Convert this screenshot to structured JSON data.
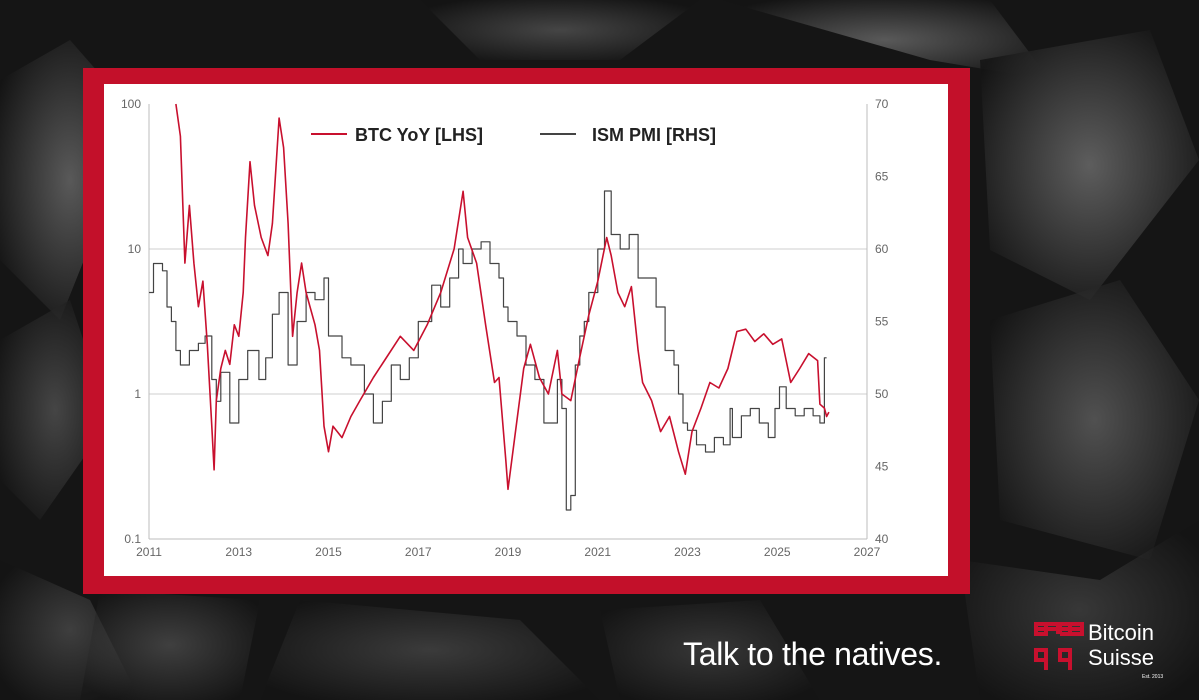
{
  "tagline": "Talk to the natives.",
  "brand": {
    "line1": "Bitcoin",
    "line2": "Suisse",
    "est": "Est. 2013"
  },
  "colors": {
    "frame": "#c3102a",
    "btc": "#c8102e",
    "ism": "#444444",
    "background": "#141414"
  },
  "chart_data": {
    "type": "line",
    "title": "",
    "legend_position": "top",
    "x_ticks": [
      "2011",
      "2013",
      "2015",
      "2017",
      "2019",
      "2021",
      "2023",
      "2025",
      "2027"
    ],
    "xlim": [
      2011,
      2027
    ],
    "y_left": {
      "scale": "log",
      "ticks": [
        "0.1",
        "1",
        "10",
        "100"
      ],
      "range": [
        0.1,
        100
      ]
    },
    "y_right": {
      "scale": "linear",
      "ticks": [
        "40",
        "45",
        "50",
        "55",
        "60",
        "65",
        "70"
      ],
      "range": [
        40,
        70
      ]
    },
    "grid": "horizontal",
    "series": [
      {
        "name": "BTC YoY [LHS]",
        "axis": "left",
        "color": "#c8102e",
        "points": [
          [
            2011.6,
            100
          ],
          [
            2011.7,
            60
          ],
          [
            2011.8,
            8
          ],
          [
            2011.9,
            20
          ],
          [
            2012.0,
            8
          ],
          [
            2012.1,
            4
          ],
          [
            2012.2,
            6
          ],
          [
            2012.3,
            2.2
          ],
          [
            2012.4,
            0.6
          ],
          [
            2012.45,
            0.3
          ],
          [
            2012.5,
            0.9
          ],
          [
            2012.6,
            1.5
          ],
          [
            2012.7,
            2.0
          ],
          [
            2012.8,
            1.6
          ],
          [
            2012.9,
            3.0
          ],
          [
            2013.0,
            2.5
          ],
          [
            2013.1,
            5
          ],
          [
            2013.15,
            12
          ],
          [
            2013.25,
            40
          ],
          [
            2013.35,
            20
          ],
          [
            2013.5,
            12
          ],
          [
            2013.65,
            9
          ],
          [
            2013.75,
            15
          ],
          [
            2013.9,
            80
          ],
          [
            2014.0,
            50
          ],
          [
            2014.1,
            15
          ],
          [
            2014.2,
            2.5
          ],
          [
            2014.3,
            5
          ],
          [
            2014.4,
            8
          ],
          [
            2014.5,
            5
          ],
          [
            2014.7,
            3
          ],
          [
            2014.8,
            2
          ],
          [
            2014.9,
            0.6
          ],
          [
            2015.0,
            0.4
          ],
          [
            2015.1,
            0.6
          ],
          [
            2015.3,
            0.5
          ],
          [
            2015.5,
            0.7
          ],
          [
            2015.7,
            0.9
          ],
          [
            2016.0,
            1.3
          ],
          [
            2016.3,
            1.8
          ],
          [
            2016.6,
            2.5
          ],
          [
            2016.9,
            2.0
          ],
          [
            2017.2,
            3.0
          ],
          [
            2017.5,
            5
          ],
          [
            2017.8,
            10
          ],
          [
            2018.0,
            25
          ],
          [
            2018.1,
            12
          ],
          [
            2018.3,
            8
          ],
          [
            2018.5,
            3
          ],
          [
            2018.7,
            1.2
          ],
          [
            2018.8,
            1.3
          ],
          [
            2018.95,
            0.35
          ],
          [
            2019.0,
            0.22
          ],
          [
            2019.15,
            0.5
          ],
          [
            2019.35,
            1.5
          ],
          [
            2019.5,
            2.2
          ],
          [
            2019.7,
            1.3
          ],
          [
            2019.9,
            1.0
          ],
          [
            2020.1,
            2.0
          ],
          [
            2020.2,
            1.0
          ],
          [
            2020.4,
            0.9
          ],
          [
            2020.6,
            1.8
          ],
          [
            2020.8,
            3.5
          ],
          [
            2021.0,
            6
          ],
          [
            2021.2,
            12
          ],
          [
            2021.3,
            9
          ],
          [
            2021.45,
            5
          ],
          [
            2021.6,
            4
          ],
          [
            2021.75,
            5.5
          ],
          [
            2021.9,
            2
          ],
          [
            2022.0,
            1.2
          ],
          [
            2022.2,
            0.9
          ],
          [
            2022.4,
            0.55
          ],
          [
            2022.6,
            0.7
          ],
          [
            2022.8,
            0.4
          ],
          [
            2022.95,
            0.28
          ],
          [
            2023.1,
            0.55
          ],
          [
            2023.3,
            0.8
          ],
          [
            2023.5,
            1.2
          ],
          [
            2023.7,
            1.1
          ],
          [
            2023.9,
            1.5
          ],
          [
            2024.1,
            2.7
          ],
          [
            2024.3,
            2.8
          ],
          [
            2024.5,
            2.3
          ],
          [
            2024.7,
            2.6
          ],
          [
            2024.9,
            2.2
          ],
          [
            2025.1,
            2.4
          ],
          [
            2025.3,
            1.2
          ],
          [
            2025.5,
            1.5
          ],
          [
            2025.7,
            1.9
          ],
          [
            2025.9,
            1.7
          ],
          [
            2025.95,
            0.85
          ],
          [
            2026.05,
            0.8
          ],
          [
            2026.1,
            0.7
          ],
          [
            2026.15,
            0.75
          ]
        ]
      },
      {
        "name": "ISM PMI [RHS]",
        "axis": "right",
        "color": "#444444",
        "points": [
          [
            2011.0,
            57
          ],
          [
            2011.1,
            59
          ],
          [
            2011.3,
            58.5
          ],
          [
            2011.4,
            56
          ],
          [
            2011.5,
            55
          ],
          [
            2011.6,
            53
          ],
          [
            2011.7,
            52
          ],
          [
            2011.9,
            53
          ],
          [
            2012.1,
            53.5
          ],
          [
            2012.25,
            54
          ],
          [
            2012.4,
            51
          ],
          [
            2012.5,
            49.5
          ],
          [
            2012.6,
            51.5
          ],
          [
            2012.8,
            48
          ],
          [
            2013.0,
            51
          ],
          [
            2013.2,
            53
          ],
          [
            2013.35,
            53
          ],
          [
            2013.45,
            51
          ],
          [
            2013.6,
            52.5
          ],
          [
            2013.75,
            55.5
          ],
          [
            2013.9,
            57
          ],
          [
            2014.1,
            52
          ],
          [
            2014.3,
            55
          ],
          [
            2014.5,
            57
          ],
          [
            2014.7,
            56.5
          ],
          [
            2014.9,
            58
          ],
          [
            2015.0,
            54
          ],
          [
            2015.3,
            52.5
          ],
          [
            2015.5,
            52
          ],
          [
            2015.8,
            50
          ],
          [
            2016.0,
            48
          ],
          [
            2016.2,
            49.5
          ],
          [
            2016.4,
            52
          ],
          [
            2016.6,
            51
          ],
          [
            2016.8,
            52.5
          ],
          [
            2017.0,
            55
          ],
          [
            2017.3,
            57.5
          ],
          [
            2017.5,
            56
          ],
          [
            2017.7,
            58
          ],
          [
            2017.9,
            60
          ],
          [
            2018.0,
            59
          ],
          [
            2018.2,
            60
          ],
          [
            2018.4,
            60.5
          ],
          [
            2018.6,
            59
          ],
          [
            2018.8,
            58
          ],
          [
            2018.9,
            56
          ],
          [
            2019.0,
            55
          ],
          [
            2019.2,
            54
          ],
          [
            2019.4,
            52
          ],
          [
            2019.6,
            51
          ],
          [
            2019.8,
            48
          ],
          [
            2020.0,
            48
          ],
          [
            2020.1,
            51
          ],
          [
            2020.2,
            49
          ],
          [
            2020.3,
            42
          ],
          [
            2020.4,
            43
          ],
          [
            2020.5,
            52
          ],
          [
            2020.6,
            54
          ],
          [
            2020.7,
            55
          ],
          [
            2020.8,
            57
          ],
          [
            2021.0,
            60
          ],
          [
            2021.15,
            64
          ],
          [
            2021.3,
            61
          ],
          [
            2021.5,
            60
          ],
          [
            2021.7,
            61
          ],
          [
            2021.9,
            58
          ],
          [
            2022.1,
            58
          ],
          [
            2022.3,
            56
          ],
          [
            2022.5,
            53
          ],
          [
            2022.7,
            52
          ],
          [
            2022.8,
            50
          ],
          [
            2022.9,
            48
          ],
          [
            2023.0,
            47.5
          ],
          [
            2023.2,
            46.5
          ],
          [
            2023.4,
            46
          ],
          [
            2023.6,
            47
          ],
          [
            2023.8,
            46.5
          ],
          [
            2023.95,
            49
          ],
          [
            2024.0,
            47
          ],
          [
            2024.2,
            48.5
          ],
          [
            2024.4,
            49
          ],
          [
            2024.6,
            48
          ],
          [
            2024.8,
            47
          ],
          [
            2024.95,
            49
          ],
          [
            2025.05,
            50.5
          ],
          [
            2025.2,
            49
          ],
          [
            2025.4,
            48.5
          ],
          [
            2025.6,
            49
          ],
          [
            2025.8,
            48.5
          ],
          [
            2025.95,
            48
          ],
          [
            2026.05,
            52.5
          ],
          [
            2026.1,
            52.5
          ]
        ]
      }
    ]
  }
}
